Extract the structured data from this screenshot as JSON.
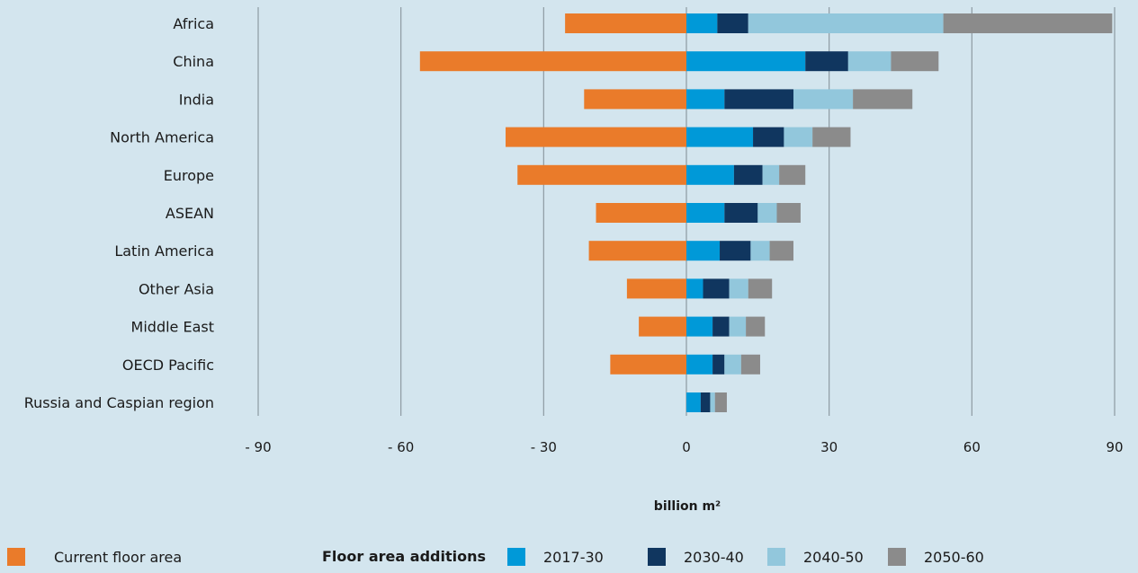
{
  "chart_data": {
    "type": "bar",
    "orientation": "horizontal",
    "stacked": true,
    "categories": [
      "Africa",
      "China",
      "India",
      "North America",
      "Europe",
      "ASEAN",
      "Latin America",
      "Other Asia",
      "Middle East",
      "OECD Pacific",
      "Russia and Caspian region"
    ],
    "series": [
      {
        "name": "Current floor area",
        "color": "#ea7b2a",
        "values": [
          -25.5,
          -56,
          -21.5,
          -38,
          -35.5,
          -19,
          -20.5,
          -12.5,
          -10,
          -16,
          0
        ]
      },
      {
        "name": "2017-30",
        "color": "#0099d8",
        "values": [
          6.5,
          25,
          8,
          14,
          10,
          8,
          7,
          3.5,
          5.5,
          5.5,
          3
        ]
      },
      {
        "name": "2030-40",
        "color": "#10365f",
        "values": [
          6.5,
          9,
          14.5,
          6.5,
          6,
          7,
          6.5,
          5.5,
          3.5,
          2.5,
          2
        ]
      },
      {
        "name": "2040-50",
        "color": "#92c7dc",
        "values": [
          41,
          9,
          12.5,
          6,
          3.5,
          4,
          4,
          4,
          3.5,
          3.5,
          1
        ]
      },
      {
        "name": "2050-60",
        "color": "#8b8b8b",
        "values": [
          35.5,
          10,
          12.5,
          8,
          5.5,
          5,
          5,
          5,
          4,
          4,
          2.5
        ]
      }
    ],
    "xlim": [
      -90,
      90
    ],
    "xticks": [
      -90,
      -60,
      -30,
      0,
      30,
      60,
      90
    ],
    "xtick_labels": [
      "- 90",
      "- 60",
      "- 30",
      "0",
      "30",
      "60",
      "90"
    ],
    "xlabel": "billion m²",
    "ylabel": "",
    "title": "",
    "grid": "vertical",
    "legend_position": "bottom"
  },
  "legend": {
    "current_label": "Current floor area",
    "additions_heading": "Floor area additions",
    "items": [
      "2017-30",
      "2030-40",
      "2040-50",
      "2050-60"
    ]
  },
  "colors": {
    "background": "#d3e5ee",
    "gridline": "#8d9aa2",
    "current": "#ea7b2a",
    "p2017_30": "#0099d8",
    "p2030_40": "#10365f",
    "p2040_50": "#92c7dc",
    "p2050_60": "#8b8b8b"
  }
}
